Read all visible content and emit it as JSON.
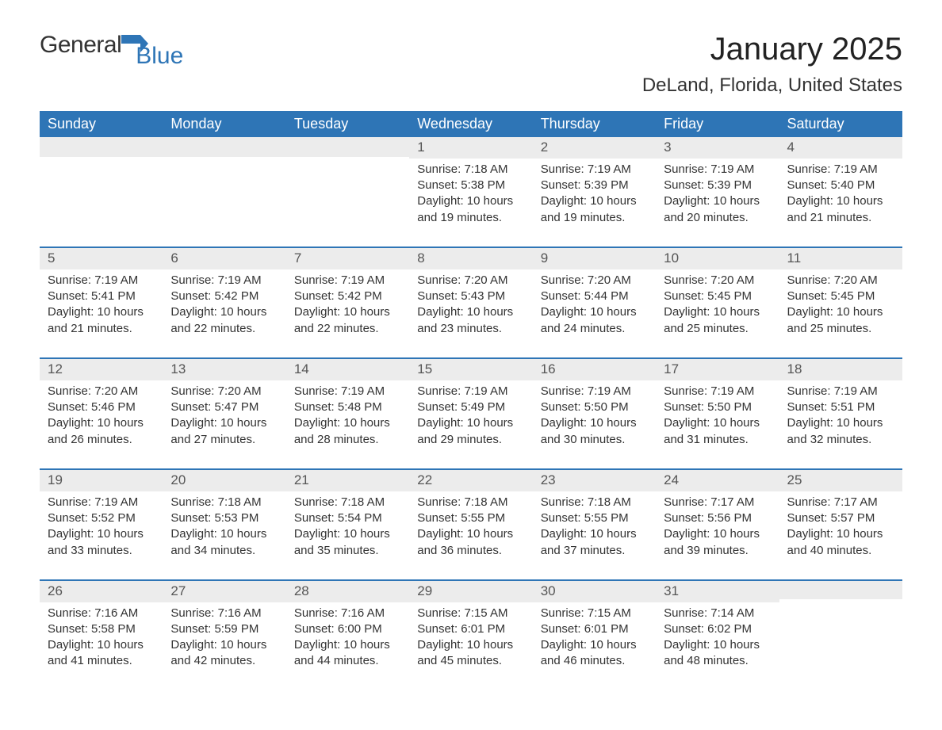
{
  "logo": {
    "text1": "General",
    "text2": "Blue",
    "flag_color": "#2e75b6"
  },
  "title": "January 2025",
  "location": "DeLand, Florida, United States",
  "colors": {
    "header_bg": "#2e75b6",
    "header_text": "#ffffff",
    "strip_bg": "#ececec",
    "strip_border": "#2e75b6",
    "text": "#333333",
    "background": "#ffffff"
  },
  "typography": {
    "title_fontsize": 40,
    "location_fontsize": 24,
    "dayheader_fontsize": 18,
    "body_fontsize": 15
  },
  "day_headers": [
    "Sunday",
    "Monday",
    "Tuesday",
    "Wednesday",
    "Thursday",
    "Friday",
    "Saturday"
  ],
  "labels": {
    "sunrise": "Sunrise:",
    "sunset": "Sunset:",
    "daylight": "Daylight:"
  },
  "weeks": [
    [
      null,
      null,
      null,
      {
        "n": "1",
        "sunrise": "7:18 AM",
        "sunset": "5:38 PM",
        "daylight": "10 hours and 19 minutes."
      },
      {
        "n": "2",
        "sunrise": "7:19 AM",
        "sunset": "5:39 PM",
        "daylight": "10 hours and 19 minutes."
      },
      {
        "n": "3",
        "sunrise": "7:19 AM",
        "sunset": "5:39 PM",
        "daylight": "10 hours and 20 minutes."
      },
      {
        "n": "4",
        "sunrise": "7:19 AM",
        "sunset": "5:40 PM",
        "daylight": "10 hours and 21 minutes."
      }
    ],
    [
      {
        "n": "5",
        "sunrise": "7:19 AM",
        "sunset": "5:41 PM",
        "daylight": "10 hours and 21 minutes."
      },
      {
        "n": "6",
        "sunrise": "7:19 AM",
        "sunset": "5:42 PM",
        "daylight": "10 hours and 22 minutes."
      },
      {
        "n": "7",
        "sunrise": "7:19 AM",
        "sunset": "5:42 PM",
        "daylight": "10 hours and 22 minutes."
      },
      {
        "n": "8",
        "sunrise": "7:20 AM",
        "sunset": "5:43 PM",
        "daylight": "10 hours and 23 minutes."
      },
      {
        "n": "9",
        "sunrise": "7:20 AM",
        "sunset": "5:44 PM",
        "daylight": "10 hours and 24 minutes."
      },
      {
        "n": "10",
        "sunrise": "7:20 AM",
        "sunset": "5:45 PM",
        "daylight": "10 hours and 25 minutes."
      },
      {
        "n": "11",
        "sunrise": "7:20 AM",
        "sunset": "5:45 PM",
        "daylight": "10 hours and 25 minutes."
      }
    ],
    [
      {
        "n": "12",
        "sunrise": "7:20 AM",
        "sunset": "5:46 PM",
        "daylight": "10 hours and 26 minutes."
      },
      {
        "n": "13",
        "sunrise": "7:20 AM",
        "sunset": "5:47 PM",
        "daylight": "10 hours and 27 minutes."
      },
      {
        "n": "14",
        "sunrise": "7:19 AM",
        "sunset": "5:48 PM",
        "daylight": "10 hours and 28 minutes."
      },
      {
        "n": "15",
        "sunrise": "7:19 AM",
        "sunset": "5:49 PM",
        "daylight": "10 hours and 29 minutes."
      },
      {
        "n": "16",
        "sunrise": "7:19 AM",
        "sunset": "5:50 PM",
        "daylight": "10 hours and 30 minutes."
      },
      {
        "n": "17",
        "sunrise": "7:19 AM",
        "sunset": "5:50 PM",
        "daylight": "10 hours and 31 minutes."
      },
      {
        "n": "18",
        "sunrise": "7:19 AM",
        "sunset": "5:51 PM",
        "daylight": "10 hours and 32 minutes."
      }
    ],
    [
      {
        "n": "19",
        "sunrise": "7:19 AM",
        "sunset": "5:52 PM",
        "daylight": "10 hours and 33 minutes."
      },
      {
        "n": "20",
        "sunrise": "7:18 AM",
        "sunset": "5:53 PM",
        "daylight": "10 hours and 34 minutes."
      },
      {
        "n": "21",
        "sunrise": "7:18 AM",
        "sunset": "5:54 PM",
        "daylight": "10 hours and 35 minutes."
      },
      {
        "n": "22",
        "sunrise": "7:18 AM",
        "sunset": "5:55 PM",
        "daylight": "10 hours and 36 minutes."
      },
      {
        "n": "23",
        "sunrise": "7:18 AM",
        "sunset": "5:55 PM",
        "daylight": "10 hours and 37 minutes."
      },
      {
        "n": "24",
        "sunrise": "7:17 AM",
        "sunset": "5:56 PM",
        "daylight": "10 hours and 39 minutes."
      },
      {
        "n": "25",
        "sunrise": "7:17 AM",
        "sunset": "5:57 PM",
        "daylight": "10 hours and 40 minutes."
      }
    ],
    [
      {
        "n": "26",
        "sunrise": "7:16 AM",
        "sunset": "5:58 PM",
        "daylight": "10 hours and 41 minutes."
      },
      {
        "n": "27",
        "sunrise": "7:16 AM",
        "sunset": "5:59 PM",
        "daylight": "10 hours and 42 minutes."
      },
      {
        "n": "28",
        "sunrise": "7:16 AM",
        "sunset": "6:00 PM",
        "daylight": "10 hours and 44 minutes."
      },
      {
        "n": "29",
        "sunrise": "7:15 AM",
        "sunset": "6:01 PM",
        "daylight": "10 hours and 45 minutes."
      },
      {
        "n": "30",
        "sunrise": "7:15 AM",
        "sunset": "6:01 PM",
        "daylight": "10 hours and 46 minutes."
      },
      {
        "n": "31",
        "sunrise": "7:14 AM",
        "sunset": "6:02 PM",
        "daylight": "10 hours and 48 minutes."
      },
      null
    ]
  ]
}
